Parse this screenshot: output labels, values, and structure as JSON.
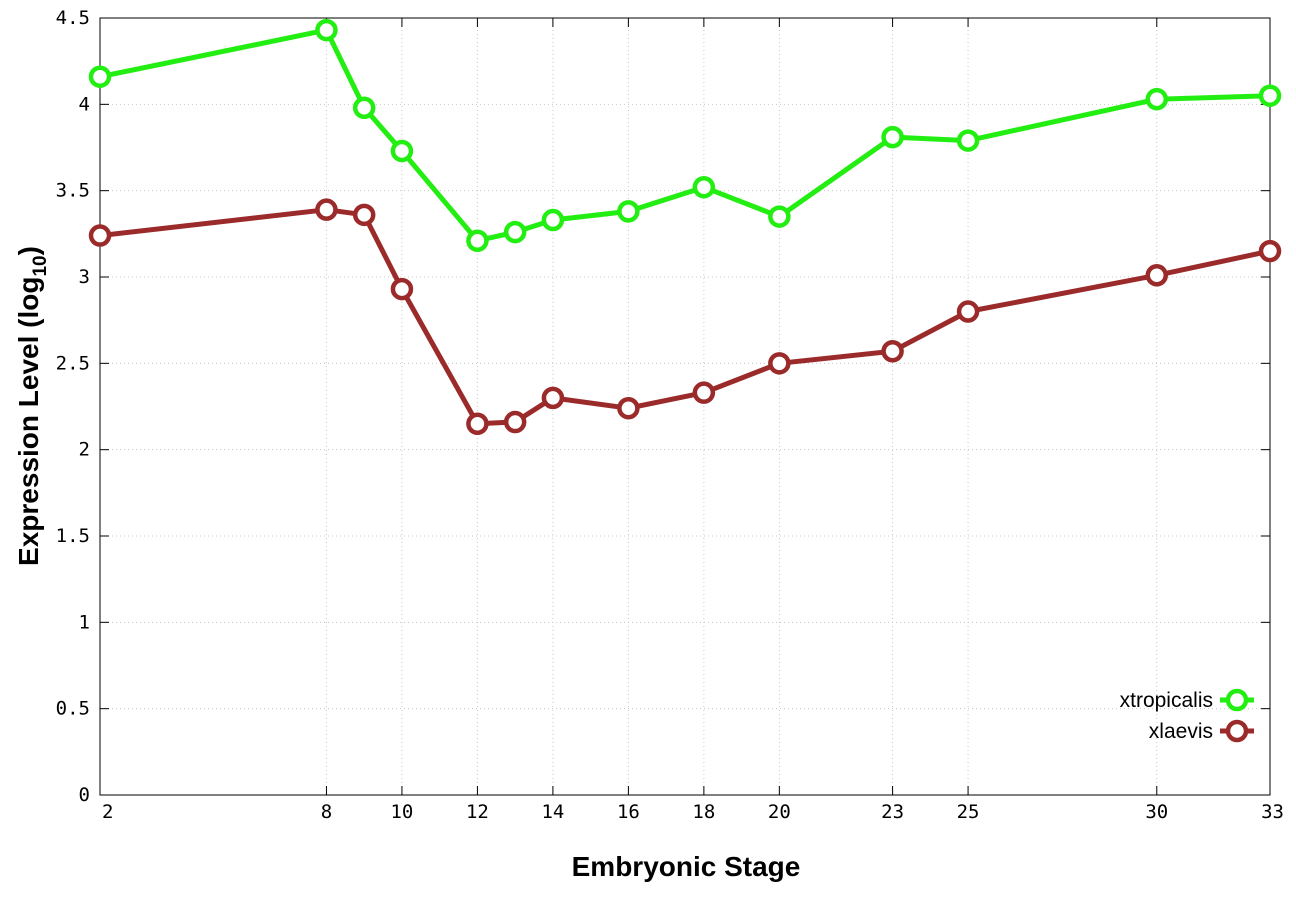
{
  "chart_data": {
    "type": "line",
    "title": "",
    "xlabel": "Embryonic Stage",
    "ylabel_main": "Expression Level (log",
    "ylabel_sub": "10",
    "ylabel_close": ")",
    "xlim": [
      2,
      33
    ],
    "ylim": [
      0,
      4.5
    ],
    "grid": true,
    "legend_position": "bottom-right",
    "x_ticks": [
      2,
      8,
      10,
      12,
      14,
      16,
      18,
      20,
      23,
      25,
      30,
      33
    ],
    "x_tick_labels": [
      "2",
      "8",
      "10",
      "12",
      "14",
      "16",
      "18",
      "20",
      "23",
      "25",
      "30",
      "33"
    ],
    "y_ticks": [
      0,
      0.5,
      1,
      1.5,
      2,
      2.5,
      3,
      3.5,
      4,
      4.5
    ],
    "y_tick_labels": [
      "0",
      "0.5",
      "1",
      "1.5",
      "2",
      "2.5",
      "3",
      "3.5",
      "4",
      "4.5"
    ],
    "x": [
      2,
      8,
      9,
      10,
      12,
      13,
      14,
      16,
      18,
      20,
      23,
      25,
      30,
      33
    ],
    "series": [
      {
        "name": "xtropicalis",
        "color": "#22ee11",
        "values": [
          4.16,
          4.43,
          3.98,
          3.73,
          3.21,
          3.26,
          3.33,
          3.38,
          3.52,
          3.35,
          3.81,
          3.79,
          4.03,
          4.05
        ]
      },
      {
        "name": "xlaevis",
        "color": "#9b2a2a",
        "values": [
          3.24,
          3.39,
          3.36,
          2.93,
          2.15,
          2.16,
          2.3,
          2.24,
          2.33,
          2.5,
          2.57,
          2.8,
          3.01,
          3.15
        ]
      }
    ]
  }
}
